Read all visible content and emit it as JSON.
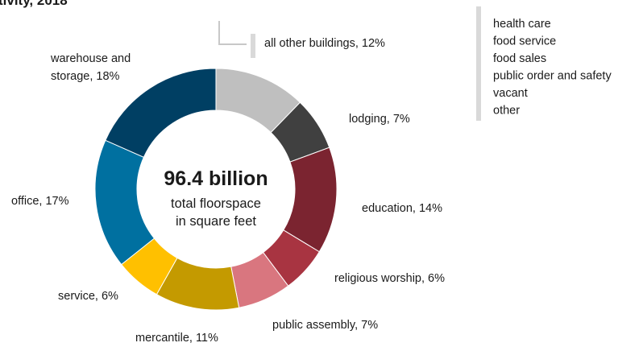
{
  "chart_data": {
    "type": "donut",
    "title": "tivity, 2018",
    "center_title": "96.4 billion",
    "center_subtitle": [
      "total floorspace",
      "in square feet"
    ],
    "categories": [
      "all other buildings",
      "lodging",
      "education",
      "religious worship",
      "public assembly",
      "mercantile",
      "service",
      "office",
      "warehouse and storage"
    ],
    "values": [
      12,
      7,
      14,
      6,
      7,
      11,
      6,
      17,
      18
    ],
    "labels": [
      [
        "all other buildings, 12%"
      ],
      [
        "lodging, 7%"
      ],
      [
        "education, 14%"
      ],
      [
        "religious worship, 6%"
      ],
      [
        "public assembly, 7%"
      ],
      [
        "mercantile, 11%"
      ],
      [
        "service, 6%"
      ],
      [
        "office, 17%"
      ],
      [
        "warehouse and",
        "storage, 18%"
      ]
    ],
    "colors": [
      "#bfbfbf",
      "#404040",
      "#7b2430",
      "#a83441",
      "#d9767f",
      "#c49a00",
      "#ffc000",
      "#0070a0",
      "#003f63"
    ],
    "other_buildings": [
      "health care",
      "food service",
      "food sales",
      "public order and safety",
      "vacant",
      "other"
    ]
  }
}
